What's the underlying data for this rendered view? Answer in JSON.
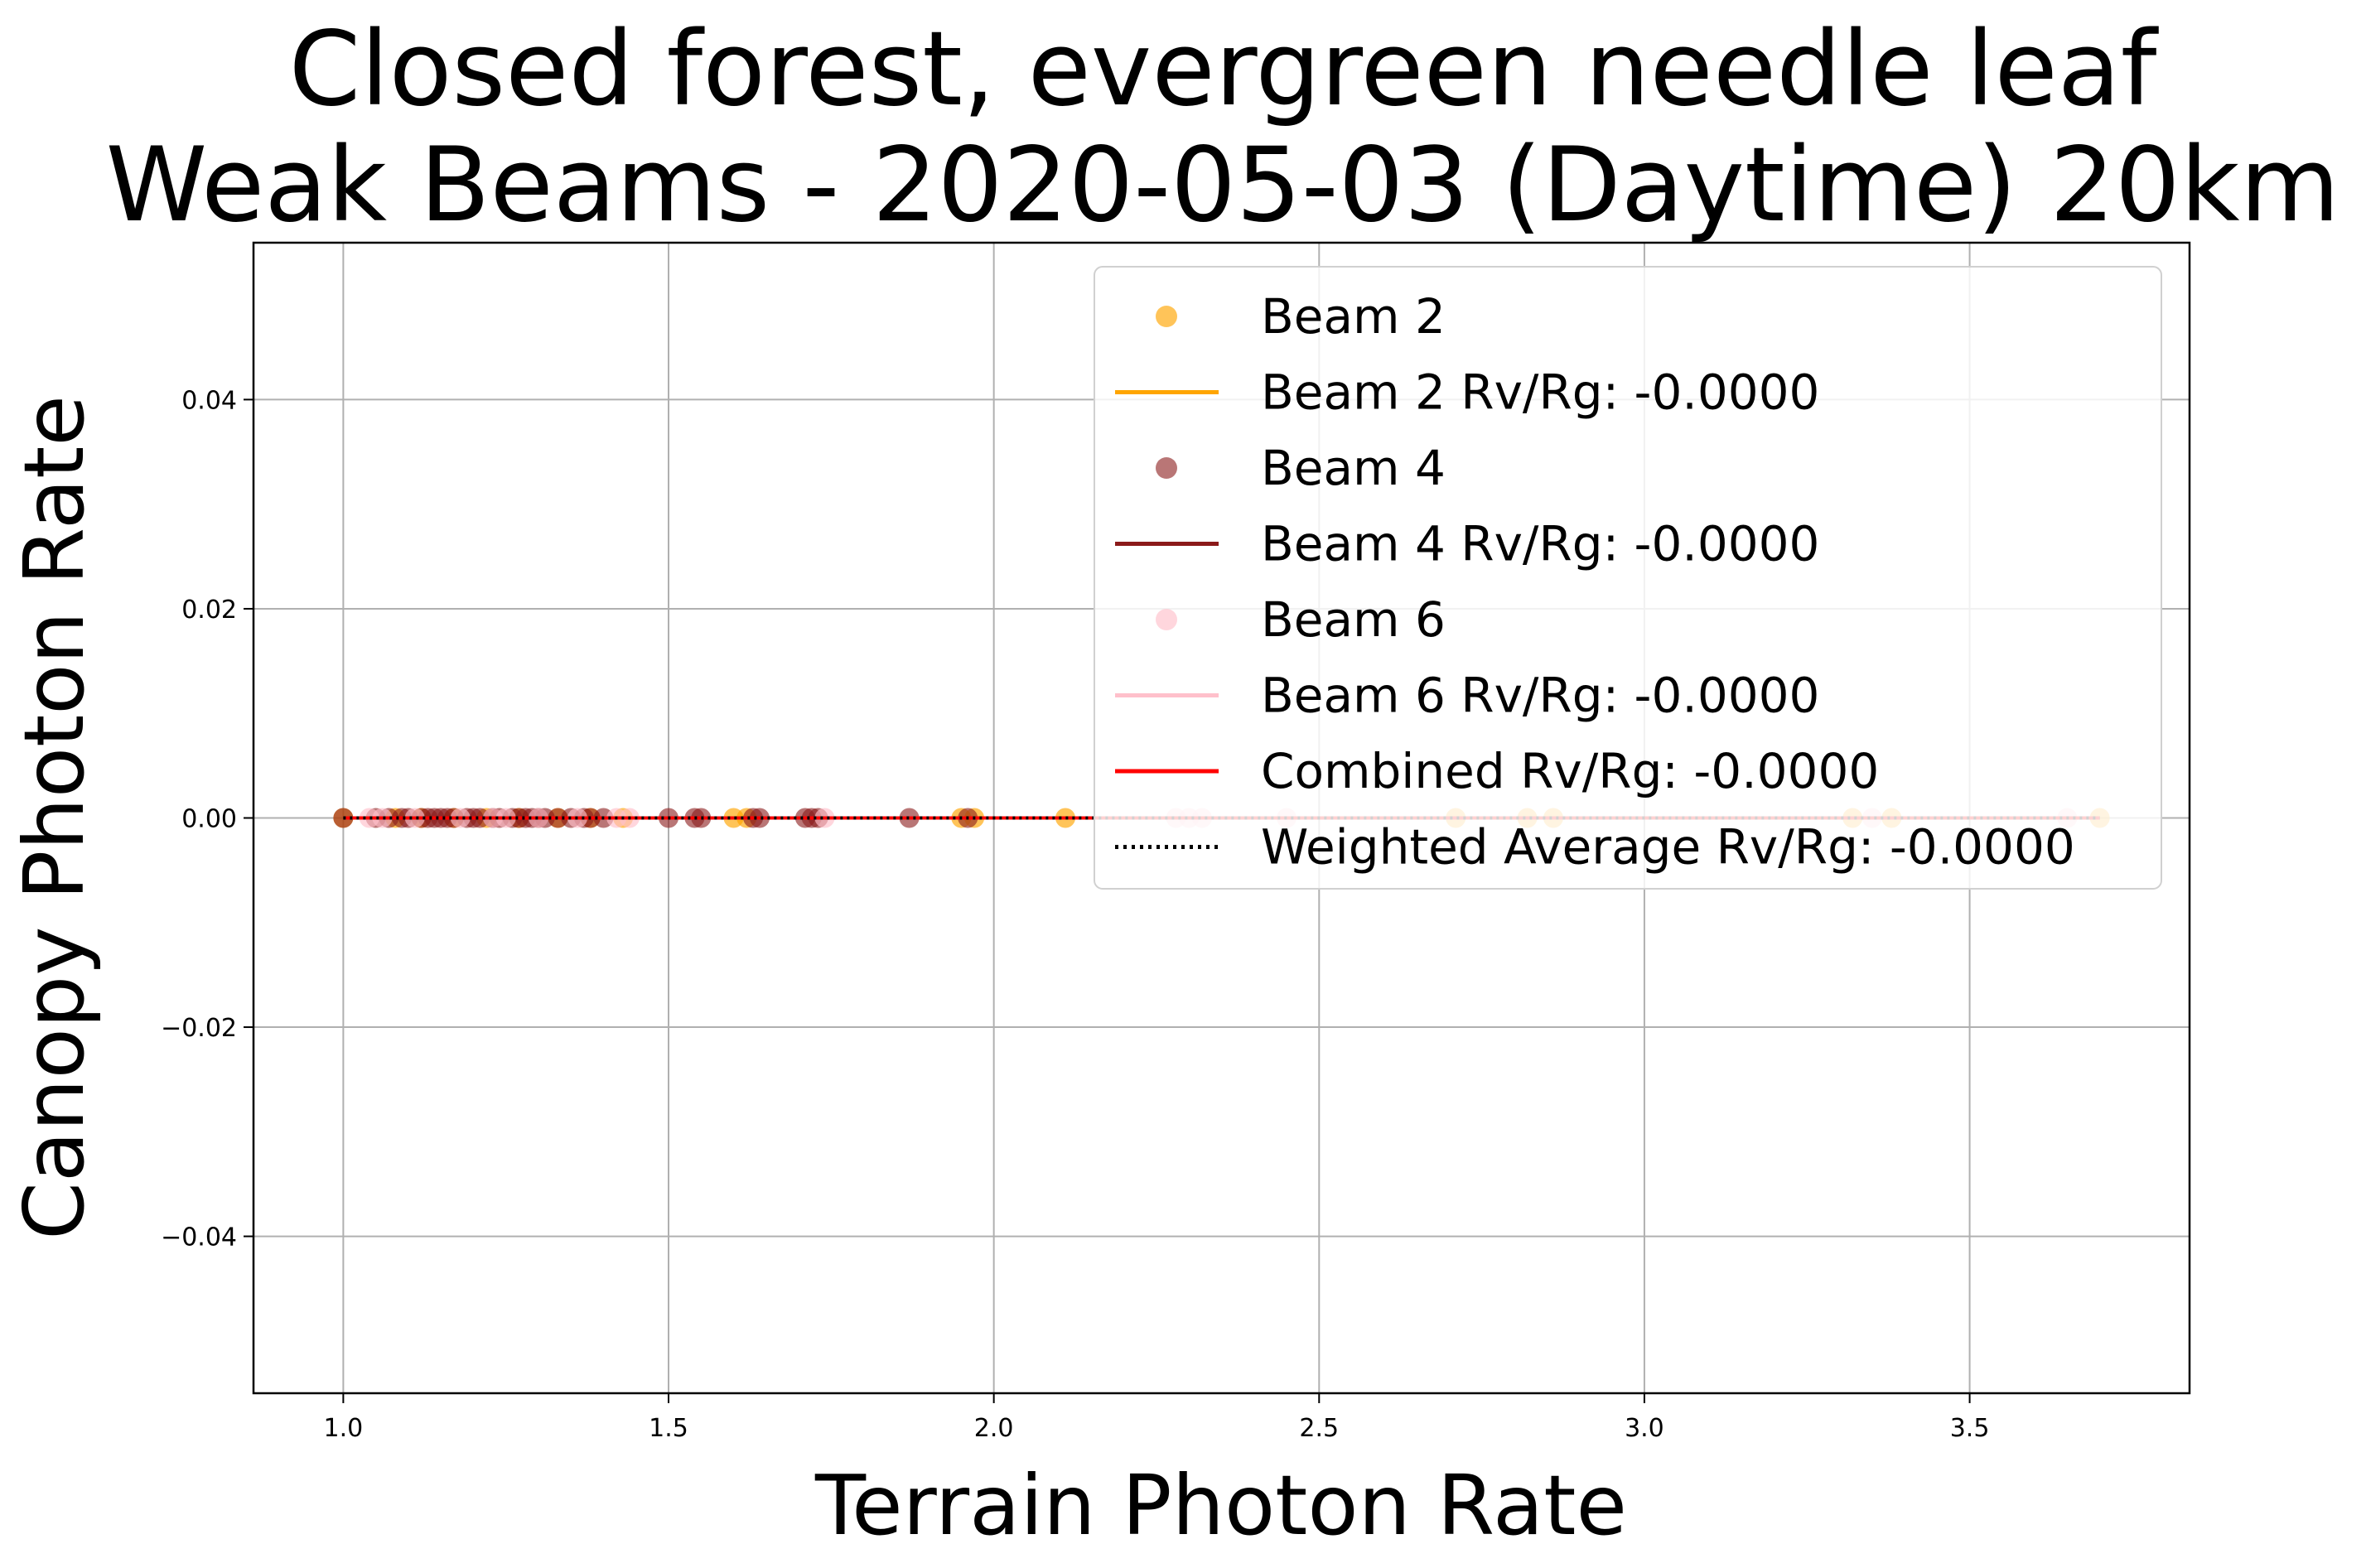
{
  "chart_data": {
    "type": "scatter",
    "title_lines": [
      "Closed forest, evergreen needle leaf",
      "Weak Beams - 2020-05-03 (Daytime) 20km"
    ],
    "xlabel": "Terrain Photon Rate",
    "ylabel": "Canopy Photon Rate",
    "xlim": [
      0.862,
      3.838
    ],
    "ylim": [
      -0.055,
      0.055
    ],
    "x_ticks": [
      1.0,
      1.5,
      2.0,
      2.5,
      3.0,
      3.5
    ],
    "x_tick_labels": [
      "1.0",
      "1.5",
      "2.0",
      "2.5",
      "3.0",
      "3.5"
    ],
    "y_ticks": [
      0.04,
      0.02,
      0.0,
      -0.02,
      -0.04
    ],
    "y_tick_labels": [
      "0.04",
      "0.02",
      "0.00",
      "−0.02",
      "−0.04"
    ],
    "grid": true,
    "legend_position": "upper right",
    "series": [
      {
        "name": "Beam 2",
        "color": "#FFA500",
        "marker_alpha": 0.65,
        "x": [
          1.0,
          1.08,
          1.12,
          1.17,
          1.22,
          1.27,
          1.33,
          1.38,
          1.43,
          1.6,
          1.62,
          1.95,
          1.97,
          2.11,
          2.71,
          2.82,
          2.86,
          3.32,
          3.38,
          3.7
        ],
        "y": [
          0,
          0,
          0,
          0,
          0,
          0,
          0,
          0,
          0,
          0,
          0,
          0,
          0,
          0,
          0,
          0,
          0,
          0,
          0,
          0
        ],
        "fit_name": "Beam 2 Rv/Rg: -0.0000",
        "fit_slope": -0.0,
        "fit_intercept": 0.0,
        "fit_x_range": [
          1.0,
          3.7
        ]
      },
      {
        "name": "Beam 4",
        "color": "#8B1A1A",
        "marker_alpha": 0.6,
        "x": [
          1.0,
          1.05,
          1.07,
          1.09,
          1.1,
          1.12,
          1.13,
          1.14,
          1.15,
          1.16,
          1.17,
          1.19,
          1.2,
          1.21,
          1.23,
          1.24,
          1.26,
          1.27,
          1.28,
          1.29,
          1.3,
          1.31,
          1.33,
          1.35,
          1.37,
          1.38,
          1.4,
          1.5,
          1.54,
          1.55,
          1.63,
          1.64,
          1.71,
          1.72,
          1.73,
          1.87,
          1.96
        ],
        "y": [
          0,
          0,
          0,
          0,
          0,
          0,
          0,
          0,
          0,
          0,
          0,
          0,
          0,
          0,
          0,
          0,
          0,
          0,
          0,
          0,
          0,
          0,
          0,
          0,
          0,
          0,
          0,
          0,
          0,
          0,
          0,
          0,
          0,
          0,
          0,
          0,
          0
        ],
        "fit_name": "Beam 4 Rv/Rg: -0.0000",
        "fit_slope": -0.0,
        "fit_intercept": 0.0,
        "fit_x_range": [
          1.0,
          1.96
        ]
      },
      {
        "name": "Beam 6",
        "color": "#FFC0CB",
        "marker_alpha": 0.65,
        "x": [
          1.04,
          1.06,
          1.11,
          1.18,
          1.23,
          1.25,
          1.3,
          1.36,
          1.42,
          1.44,
          1.74,
          2.28,
          2.3,
          2.32,
          2.45,
          3.35,
          3.65
        ],
        "y": [
          0,
          0,
          0,
          0,
          0,
          0,
          0,
          0,
          0,
          0,
          0,
          0,
          0,
          0,
          0,
          0,
          0
        ],
        "fit_name": "Beam 6 Rv/Rg: -0.0000",
        "fit_slope": -0.0,
        "fit_intercept": 0.0,
        "fit_x_range": [
          1.04,
          3.7
        ]
      }
    ],
    "combined_fit": {
      "name": "Combined Rv/Rg: -0.0000",
      "color": "#FF0000",
      "slope": -0.0,
      "intercept": 0.0,
      "x_range": [
        1.0,
        3.7
      ]
    },
    "weighted_average_fit": {
      "name": "Weighted Average Rv/Rg: -0.0000",
      "color": "#000000",
      "style": "dotted",
      "slope": -0.0,
      "intercept": 0.0,
      "x_range": [
        1.0,
        3.7
      ]
    },
    "legend_entries": [
      {
        "label": "Beam 2",
        "kind": "marker",
        "color": "#FFA500",
        "alpha": 0.65
      },
      {
        "label": "Beam 2 Rv/Rg: -0.0000",
        "kind": "line",
        "color": "#FFA500"
      },
      {
        "label": "Beam 4",
        "kind": "marker",
        "color": "#8B1A1A",
        "alpha": 0.6
      },
      {
        "label": "Beam 4 Rv/Rg: -0.0000",
        "kind": "line",
        "color": "#8B1A1A"
      },
      {
        "label": "Beam 6",
        "kind": "marker",
        "color": "#FFC0CB",
        "alpha": 0.65
      },
      {
        "label": "Beam 6 Rv/Rg: -0.0000",
        "kind": "line",
        "color": "#FFC0CB"
      },
      {
        "label": "Combined Rv/Rg: -0.0000",
        "kind": "line",
        "color": "#FF0000"
      },
      {
        "label": "Weighted Average Rv/Rg: -0.0000",
        "kind": "dotted",
        "color": "#000000"
      }
    ]
  }
}
